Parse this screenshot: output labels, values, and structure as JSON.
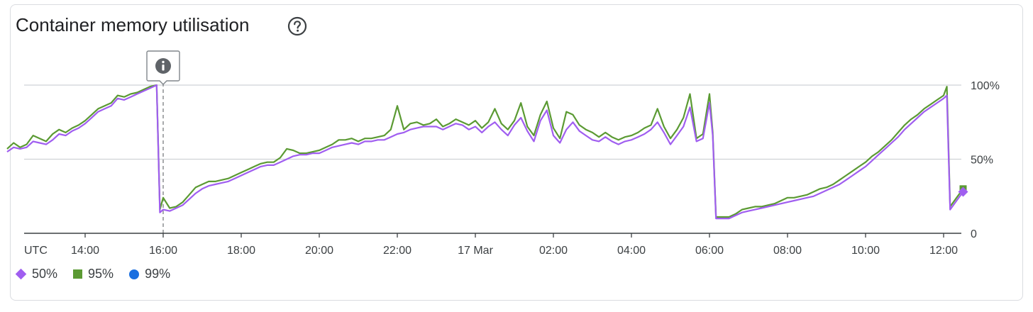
{
  "header": {
    "title": "Container memory utilisation",
    "help_icon": "help-circle-icon"
  },
  "annotation": {
    "icon": "info-icon",
    "x_label": "16:00"
  },
  "colors": {
    "p50": "#a05ef0",
    "p95": "#5b9a33",
    "p99": "#1a6fe0",
    "grid": "#cfd2d6",
    "axis": "#3c4043"
  },
  "chart_data": {
    "type": "line",
    "x_unit": "time (UTC)",
    "x_tick_labels": [
      "UTC",
      "14:00",
      "16:00",
      "18:00",
      "20:00",
      "22:00",
      "17 Mar",
      "02:00",
      "04:00",
      "06:00",
      "08:00",
      "10:00",
      "12:00"
    ],
    "y_tick_labels": [
      "100%",
      "50%",
      "0"
    ],
    "ylim": [
      0,
      100
    ],
    "legend_position": "bottom-left",
    "series": [
      {
        "name": "50%",
        "marker": "diamond",
        "points": [
          [
            "12:00",
            55
          ],
          [
            "12:10",
            58
          ],
          [
            "12:20",
            57
          ],
          [
            "12:30",
            58
          ],
          [
            "12:40",
            62
          ],
          [
            "12:50",
            61
          ],
          [
            "13:00",
            60
          ],
          [
            "13:10",
            63
          ],
          [
            "13:20",
            67
          ],
          [
            "13:30",
            66
          ],
          [
            "13:40",
            69
          ],
          [
            "13:50",
            71
          ],
          [
            "14:00",
            74
          ],
          [
            "14:10",
            78
          ],
          [
            "14:20",
            82
          ],
          [
            "14:30",
            84
          ],
          [
            "14:40",
            86
          ],
          [
            "14:50",
            91
          ],
          [
            "15:00",
            90
          ],
          [
            "15:10",
            92
          ],
          [
            "15:20",
            94
          ],
          [
            "15:30",
            96
          ],
          [
            "15:40",
            98
          ],
          [
            "15:50",
            100
          ],
          [
            "15:55",
            14
          ],
          [
            "16:00",
            16
          ],
          [
            "16:10",
            15
          ],
          [
            "16:20",
            17
          ],
          [
            "16:30",
            19
          ],
          [
            "16:40",
            23
          ],
          [
            "16:50",
            27
          ],
          [
            "17:00",
            30
          ],
          [
            "17:10",
            32
          ],
          [
            "17:20",
            33
          ],
          [
            "17:30",
            34
          ],
          [
            "17:40",
            35
          ],
          [
            "17:50",
            37
          ],
          [
            "18:00",
            39
          ],
          [
            "18:10",
            41
          ],
          [
            "18:20",
            43
          ],
          [
            "18:30",
            45
          ],
          [
            "18:40",
            46
          ],
          [
            "18:50",
            46
          ],
          [
            "19:00",
            48
          ],
          [
            "19:10",
            50
          ],
          [
            "19:20",
            52
          ],
          [
            "19:30",
            53
          ],
          [
            "19:40",
            53
          ],
          [
            "19:50",
            54
          ],
          [
            "20:00",
            54
          ],
          [
            "20:10",
            56
          ],
          [
            "20:20",
            58
          ],
          [
            "20:30",
            59
          ],
          [
            "20:40",
            60
          ],
          [
            "20:50",
            61
          ],
          [
            "21:00",
            60
          ],
          [
            "21:10",
            62
          ],
          [
            "21:20",
            62
          ],
          [
            "21:30",
            63
          ],
          [
            "21:40",
            63
          ],
          [
            "21:50",
            65
          ],
          [
            "22:00",
            67
          ],
          [
            "22:10",
            68
          ],
          [
            "22:20",
            70
          ],
          [
            "22:30",
            71
          ],
          [
            "22:40",
            72
          ],
          [
            "22:50",
            72
          ],
          [
            "23:00",
            72
          ],
          [
            "23:10",
            70
          ],
          [
            "23:20",
            72
          ],
          [
            "23:30",
            74
          ],
          [
            "23:40",
            73
          ],
          [
            "23:50",
            70
          ],
          [
            "00:00",
            72
          ],
          [
            "00:10",
            68
          ],
          [
            "00:20",
            72
          ],
          [
            "00:30",
            75
          ],
          [
            "00:40",
            70
          ],
          [
            "00:50",
            66
          ],
          [
            "01:00",
            73
          ],
          [
            "01:10",
            78
          ],
          [
            "01:20",
            69
          ],
          [
            "01:30",
            62
          ],
          [
            "01:40",
            76
          ],
          [
            "01:50",
            83
          ],
          [
            "02:00",
            66
          ],
          [
            "02:10",
            61
          ],
          [
            "02:20",
            70
          ],
          [
            "02:30",
            75
          ],
          [
            "02:40",
            69
          ],
          [
            "02:50",
            66
          ],
          [
            "03:00",
            63
          ],
          [
            "03:10",
            62
          ],
          [
            "03:20",
            65
          ],
          [
            "03:30",
            62
          ],
          [
            "03:40",
            60
          ],
          [
            "03:50",
            62
          ],
          [
            "04:00",
            63
          ],
          [
            "04:10",
            65
          ],
          [
            "04:20",
            67
          ],
          [
            "04:30",
            70
          ],
          [
            "04:40",
            75
          ],
          [
            "04:50",
            68
          ],
          [
            "05:00",
            60
          ],
          [
            "05:10",
            66
          ],
          [
            "05:20",
            72
          ],
          [
            "05:30",
            85
          ],
          [
            "05:40",
            62
          ],
          [
            "05:50",
            64
          ],
          [
            "06:00",
            88
          ],
          [
            "06:05",
            66
          ],
          [
            "06:10",
            10
          ],
          [
            "06:20",
            10
          ],
          [
            "06:30",
            10
          ],
          [
            "06:40",
            12
          ],
          [
            "06:50",
            14
          ],
          [
            "07:00",
            15
          ],
          [
            "07:10",
            16
          ],
          [
            "07:20",
            17
          ],
          [
            "07:30",
            18
          ],
          [
            "07:40",
            19
          ],
          [
            "07:50",
            20
          ],
          [
            "08:00",
            21
          ],
          [
            "08:10",
            22
          ],
          [
            "08:20",
            23
          ],
          [
            "08:30",
            24
          ],
          [
            "08:40",
            25
          ],
          [
            "08:50",
            27
          ],
          [
            "09:00",
            29
          ],
          [
            "09:10",
            31
          ],
          [
            "09:20",
            33
          ],
          [
            "09:30",
            36
          ],
          [
            "09:40",
            39
          ],
          [
            "09:50",
            42
          ],
          [
            "10:00",
            45
          ],
          [
            "10:10",
            49
          ],
          [
            "10:20",
            53
          ],
          [
            "10:30",
            57
          ],
          [
            "10:40",
            61
          ],
          [
            "10:50",
            65
          ],
          [
            "11:00",
            70
          ],
          [
            "11:10",
            74
          ],
          [
            "11:20",
            78
          ],
          [
            "11:30",
            82
          ],
          [
            "11:40",
            85
          ],
          [
            "11:50",
            88
          ],
          [
            "12:00",
            91
          ],
          [
            "12:05",
            93
          ],
          [
            "12:10",
            16
          ],
          [
            "12:20",
            22
          ],
          [
            "12:30",
            28
          ]
        ]
      },
      {
        "name": "95%",
        "marker": "square",
        "points": [
          [
            "12:00",
            57
          ],
          [
            "12:10",
            61
          ],
          [
            "12:20",
            58
          ],
          [
            "12:30",
            60
          ],
          [
            "12:40",
            66
          ],
          [
            "12:50",
            64
          ],
          [
            "13:00",
            62
          ],
          [
            "13:10",
            67
          ],
          [
            "13:20",
            70
          ],
          [
            "13:30",
            68
          ],
          [
            "13:40",
            71
          ],
          [
            "13:50",
            73
          ],
          [
            "14:00",
            76
          ],
          [
            "14:10",
            80
          ],
          [
            "14:20",
            84
          ],
          [
            "14:30",
            86
          ],
          [
            "14:40",
            88
          ],
          [
            "14:50",
            93
          ],
          [
            "15:00",
            92
          ],
          [
            "15:10",
            94
          ],
          [
            "15:20",
            95
          ],
          [
            "15:30",
            97
          ],
          [
            "15:40",
            99
          ],
          [
            "15:50",
            100
          ],
          [
            "15:55",
            16
          ],
          [
            "16:00",
            24
          ],
          [
            "16:10",
            17
          ],
          [
            "16:20",
            18
          ],
          [
            "16:30",
            21
          ],
          [
            "16:40",
            26
          ],
          [
            "16:50",
            31
          ],
          [
            "17:00",
            33
          ],
          [
            "17:10",
            35
          ],
          [
            "17:20",
            35
          ],
          [
            "17:30",
            36
          ],
          [
            "17:40",
            37
          ],
          [
            "17:50",
            39
          ],
          [
            "18:00",
            41
          ],
          [
            "18:10",
            43
          ],
          [
            "18:20",
            45
          ],
          [
            "18:30",
            47
          ],
          [
            "18:40",
            48
          ],
          [
            "18:50",
            48
          ],
          [
            "19:00",
            51
          ],
          [
            "19:10",
            57
          ],
          [
            "19:20",
            56
          ],
          [
            "19:30",
            54
          ],
          [
            "19:40",
            54
          ],
          [
            "19:50",
            55
          ],
          [
            "20:00",
            56
          ],
          [
            "20:10",
            58
          ],
          [
            "20:20",
            60
          ],
          [
            "20:30",
            63
          ],
          [
            "20:40",
            63
          ],
          [
            "20:50",
            64
          ],
          [
            "21:00",
            62
          ],
          [
            "21:10",
            64
          ],
          [
            "21:20",
            64
          ],
          [
            "21:30",
            65
          ],
          [
            "21:40",
            66
          ],
          [
            "21:50",
            70
          ],
          [
            "22:00",
            86
          ],
          [
            "22:10",
            70
          ],
          [
            "22:20",
            74
          ],
          [
            "22:30",
            75
          ],
          [
            "22:40",
            73
          ],
          [
            "22:50",
            74
          ],
          [
            "23:00",
            77
          ],
          [
            "23:10",
            72
          ],
          [
            "23:20",
            74
          ],
          [
            "23:30",
            77
          ],
          [
            "23:40",
            75
          ],
          [
            "23:50",
            73
          ],
          [
            "00:00",
            76
          ],
          [
            "00:10",
            71
          ],
          [
            "00:20",
            75
          ],
          [
            "00:30",
            84
          ],
          [
            "00:40",
            74
          ],
          [
            "00:50",
            70
          ],
          [
            "01:00",
            76
          ],
          [
            "01:10",
            88
          ],
          [
            "01:20",
            72
          ],
          [
            "01:30",
            66
          ],
          [
            "01:40",
            80
          ],
          [
            "01:50",
            89
          ],
          [
            "02:00",
            71
          ],
          [
            "02:10",
            64
          ],
          [
            "02:20",
            82
          ],
          [
            "02:30",
            80
          ],
          [
            "02:40",
            73
          ],
          [
            "02:50",
            70
          ],
          [
            "03:00",
            68
          ],
          [
            "03:10",
            65
          ],
          [
            "03:20",
            68
          ],
          [
            "03:30",
            65
          ],
          [
            "03:40",
            63
          ],
          [
            "03:50",
            65
          ],
          [
            "04:00",
            66
          ],
          [
            "04:10",
            68
          ],
          [
            "04:20",
            71
          ],
          [
            "04:30",
            73
          ],
          [
            "04:40",
            84
          ],
          [
            "04:50",
            72
          ],
          [
            "05:00",
            64
          ],
          [
            "05:10",
            70
          ],
          [
            "05:20",
            78
          ],
          [
            "05:30",
            94
          ],
          [
            "05:40",
            64
          ],
          [
            "05:50",
            67
          ],
          [
            "06:00",
            94
          ],
          [
            "06:05",
            68
          ],
          [
            "06:10",
            11
          ],
          [
            "06:20",
            11
          ],
          [
            "06:30",
            11
          ],
          [
            "06:40",
            13
          ],
          [
            "06:50",
            16
          ],
          [
            "07:00",
            17
          ],
          [
            "07:10",
            18
          ],
          [
            "07:20",
            18
          ],
          [
            "07:30",
            19
          ],
          [
            "07:40",
            20
          ],
          [
            "07:50",
            22
          ],
          [
            "08:00",
            24
          ],
          [
            "08:10",
            24
          ],
          [
            "08:20",
            25
          ],
          [
            "08:30",
            26
          ],
          [
            "08:40",
            28
          ],
          [
            "08:50",
            30
          ],
          [
            "09:00",
            31
          ],
          [
            "09:10",
            33
          ],
          [
            "09:20",
            36
          ],
          [
            "09:30",
            39
          ],
          [
            "09:40",
            42
          ],
          [
            "09:50",
            45
          ],
          [
            "10:00",
            48
          ],
          [
            "10:10",
            52
          ],
          [
            "10:20",
            55
          ],
          [
            "10:30",
            59
          ],
          [
            "10:40",
            63
          ],
          [
            "10:50",
            68
          ],
          [
            "11:00",
            73
          ],
          [
            "11:10",
            77
          ],
          [
            "11:20",
            80
          ],
          [
            "11:30",
            84
          ],
          [
            "11:40",
            87
          ],
          [
            "11:50",
            90
          ],
          [
            "12:00",
            93
          ],
          [
            "12:05",
            99
          ],
          [
            "12:10",
            18
          ],
          [
            "12:20",
            24
          ],
          [
            "12:30",
            30
          ]
        ]
      },
      {
        "name": "99%",
        "marker": "circle",
        "points": []
      }
    ]
  }
}
